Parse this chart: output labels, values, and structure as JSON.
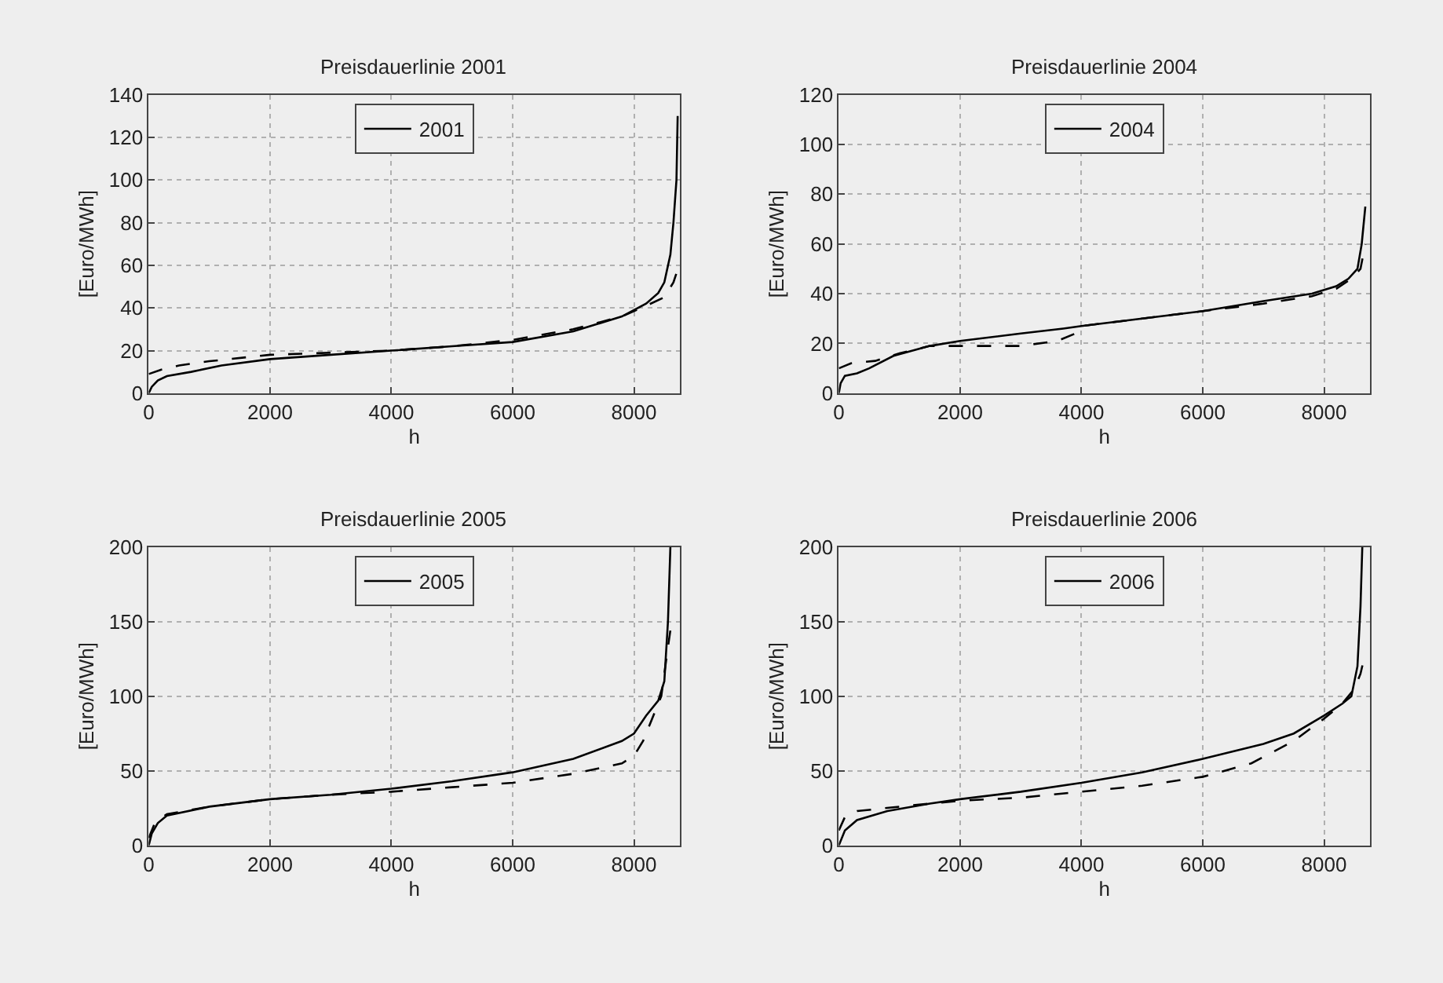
{
  "chart_data": [
    {
      "type": "line",
      "title": "Preisdauerlinie 2001",
      "xlabel": "h",
      "ylabel": "[Euro/MWh]",
      "xlim": [
        0,
        8760
      ],
      "xticks": [
        0,
        2000,
        4000,
        6000,
        8000
      ],
      "ylim": [
        0,
        140
      ],
      "yticks": [
        0,
        20,
        40,
        60,
        80,
        100,
        120,
        140
      ],
      "grid": true,
      "legend": "top",
      "series": [
        {
          "name": "2001",
          "color": "#000000",
          "line_style": "solid",
          "x": [
            0,
            50,
            150,
            300,
            700,
            1200,
            2000,
            3000,
            4000,
            5000,
            6000,
            7000,
            7800,
            8200,
            8400,
            8500,
            8600,
            8650,
            8700,
            8720
          ],
          "values": [
            0,
            3,
            6,
            8,
            10,
            13,
            16,
            18,
            20,
            22,
            24,
            29,
            36,
            42,
            47,
            52,
            65,
            80,
            100,
            130
          ]
        },
        {
          "color": "#000000",
          "line_style": "dashed",
          "x": [
            0,
            200,
            500,
            1000,
            2000,
            3000,
            4000,
            5000,
            6000,
            7000,
            7800,
            8200,
            8500,
            8650,
            8720
          ],
          "values": [
            9,
            11,
            13,
            15,
            18,
            19,
            20,
            22,
            25,
            30,
            36,
            41,
            45,
            52,
            58
          ]
        }
      ]
    },
    {
      "type": "line",
      "title": "Preisdauerlinie 2004",
      "xlabel": "h",
      "ylabel": "[Euro/MWh]",
      "xlim": [
        0,
        8760
      ],
      "xticks": [
        0,
        2000,
        4000,
        6000,
        8000
      ],
      "ylim": [
        0,
        120
      ],
      "yticks": [
        0,
        20,
        40,
        60,
        80,
        100,
        120
      ],
      "grid": true,
      "legend": "top",
      "series": [
        {
          "name": "2004",
          "color": "#000000",
          "line_style": "solid",
          "x": [
            0,
            30,
            100,
            300,
            500,
            900,
            1500,
            2000,
            3000,
            3700,
            4000,
            5000,
            6000,
            7000,
            7800,
            8200,
            8400,
            8550,
            8620,
            8680
          ],
          "values": [
            0,
            4,
            7,
            8,
            10,
            15,
            19,
            21,
            24,
            26,
            27,
            30,
            33,
            37,
            40,
            43,
            46,
            50,
            60,
            75
          ]
        },
        {
          "color": "#000000",
          "line_style": "dashed",
          "x": [
            0,
            200,
            600,
            1000,
            1500,
            2000,
            3000,
            3600,
            3900,
            4000,
            5000,
            6000,
            7000,
            7800,
            8200,
            8450,
            8600,
            8680
          ],
          "values": [
            10,
            12,
            13,
            16,
            19,
            19,
            19,
            21,
            24,
            27,
            30,
            33,
            36,
            39,
            42,
            46,
            50,
            60
          ]
        }
      ]
    },
    {
      "type": "line",
      "title": "Preisdauerlinie 2005",
      "xlabel": "h",
      "ylabel": "[Euro/MWh]",
      "xlim": [
        0,
        8760
      ],
      "xticks": [
        0,
        2000,
        4000,
        6000,
        8000
      ],
      "ylim": [
        0,
        200
      ],
      "yticks": [
        0,
        50,
        100,
        150,
        200
      ],
      "grid": true,
      "legend": "top",
      "series": [
        {
          "name": "2005",
          "color": "#000000",
          "line_style": "solid",
          "x": [
            0,
            50,
            150,
            300,
            1000,
            2000,
            3000,
            4000,
            5000,
            6000,
            7000,
            7800,
            8000,
            8200,
            8400,
            8500,
            8560,
            8600
          ],
          "values": [
            0,
            8,
            15,
            20,
            26,
            31,
            34,
            38,
            43,
            49,
            58,
            70,
            75,
            87,
            97,
            110,
            150,
            200
          ]
        },
        {
          "color": "#000000",
          "line_style": "dashed",
          "x": [
            0,
            100,
            300,
            1000,
            2000,
            3000,
            4000,
            5000,
            6000,
            7000,
            7800,
            8000,
            8150,
            8300,
            8450,
            8550,
            8620
          ],
          "values": [
            5,
            15,
            21,
            26,
            31,
            34,
            36,
            39,
            42,
            48,
            55,
            60,
            70,
            85,
            100,
            130,
            150
          ]
        }
      ]
    },
    {
      "type": "line",
      "title": "Preisdauerlinie 2006",
      "xlabel": "h",
      "ylabel": "[Euro/MWh]",
      "xlim": [
        0,
        8760
      ],
      "xticks": [
        0,
        2000,
        4000,
        6000,
        8000
      ],
      "ylim": [
        0,
        200
      ],
      "yticks": [
        0,
        50,
        100,
        150,
        200
      ],
      "grid": true,
      "legend": "top",
      "series": [
        {
          "name": "2006",
          "color": "#000000",
          "line_style": "solid",
          "x": [
            0,
            100,
            300,
            800,
            1500,
            2000,
            3000,
            4000,
            5000,
            6000,
            7000,
            7500,
            8000,
            8300,
            8450,
            8550,
            8600,
            8630
          ],
          "values": [
            0,
            10,
            17,
            23,
            28,
            31,
            36,
            42,
            49,
            58,
            68,
            75,
            87,
            95,
            100,
            120,
            160,
            200
          ]
        },
        {
          "color": "#000000",
          "line_style": "dashed",
          "x": [
            0,
            100,
            300,
            1000,
            2000,
            3000,
            4000,
            5000,
            6000,
            6800,
            7500,
            8000,
            8300,
            8500,
            8600,
            8640
          ],
          "values": [
            10,
            19,
            23,
            26,
            30,
            32,
            36,
            40,
            46,
            55,
            70,
            85,
            95,
            105,
            115,
            122
          ]
        }
      ]
    }
  ]
}
